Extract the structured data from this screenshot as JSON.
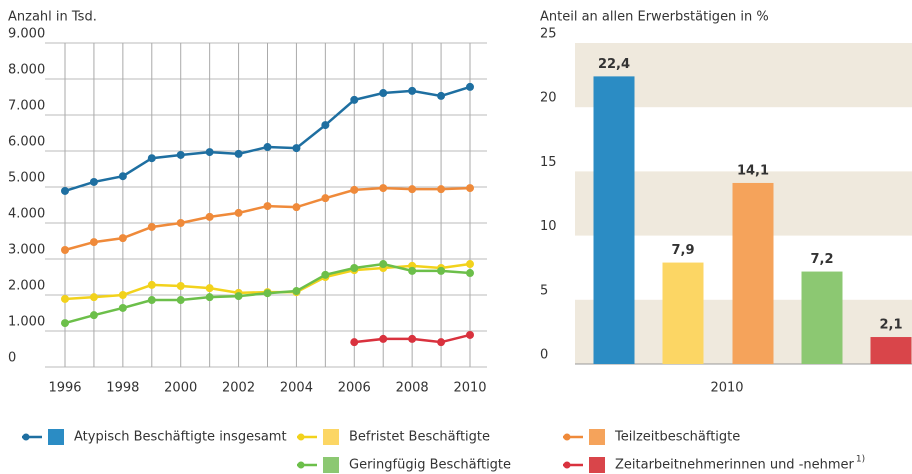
{
  "chart_data": [
    {
      "type": "line",
      "y_label": "Anzahl in Tsd.",
      "x": [
        1996,
        1997,
        1998,
        1999,
        2000,
        2001,
        2002,
        2003,
        2004,
        2005,
        2006,
        2007,
        2008,
        2009,
        2010
      ],
      "xlim": [
        1996,
        2010
      ],
      "xticks": [
        1996,
        1998,
        2000,
        2002,
        2004,
        2006,
        2008,
        2010
      ],
      "ylim": [
        0,
        9000
      ],
      "yticks": [
        0,
        {
          "value": 1000,
          "label": "1.000"
        },
        {
          "value": 2000,
          "label": "2.000"
        },
        {
          "value": 3000,
          "label": "3.000"
        },
        {
          "value": 4000,
          "label": "4.000"
        },
        {
          "value": 5000,
          "label": "5.000"
        },
        {
          "value": 6000,
          "label": "6.000"
        },
        {
          "value": 7000,
          "label": "7.000"
        },
        {
          "value": 8000,
          "label": "8.000"
        },
        {
          "value": 9000,
          "label": "9.000"
        }
      ],
      "grid": true,
      "series": [
        {
          "name": "Atypisch Beschäftigte insgesamt",
          "color": "#1e6fa1",
          "legend_color": "#2b8cc4",
          "values": [
            4890,
            5140,
            5300,
            5800,
            5890,
            5970,
            5920,
            6110,
            6080,
            6720,
            7420,
            7610,
            7670,
            7530,
            7780
          ]
        },
        {
          "name": "Befristet Beschäftigte",
          "color": "#f2d21c",
          "legend_color": "#fcd664",
          "values": [
            1890,
            1940,
            2000,
            2280,
            2250,
            2190,
            2060,
            2080,
            2080,
            2500,
            2690,
            2750,
            2810,
            2750,
            2860
          ]
        },
        {
          "name": "Teilzeitbeschäftigte",
          "color": "#ef8a3a",
          "legend_color": "#f5a35b",
          "values": [
            3250,
            3470,
            3580,
            3890,
            4000,
            4170,
            4280,
            4470,
            4440,
            4690,
            4920,
            4970,
            4940,
            4940,
            4970
          ]
        },
        {
          "name": "Geringfügig Beschäftigte",
          "color": "#6cbf4a",
          "legend_color": "#8cc872",
          "values": [
            1220,
            1440,
            1640,
            1860,
            1860,
            1940,
            1970,
            2050,
            2110,
            2560,
            2750,
            2860,
            2670,
            2670,
            2610
          ]
        },
        {
          "name": "Zeitarbeitnehmerinnen und -nehmer",
          "footnote": "1)",
          "color": "#d9323e",
          "legend_color": "#d9454a",
          "values": [
            null,
            null,
            null,
            null,
            null,
            null,
            null,
            null,
            null,
            null,
            690,
            780,
            780,
            690,
            890
          ]
        }
      ]
    },
    {
      "type": "bar",
      "y_label": "Anteil an allen Erwerbstätigen in %",
      "categories": [
        "2010"
      ],
      "ylim": [
        0,
        25
      ],
      "yticks": [
        0,
        5,
        10,
        15,
        20,
        25
      ],
      "series": [
        {
          "color": "#2b8cc4",
          "values": [
            22.4
          ],
          "value_labels": [
            "22,4"
          ]
        },
        {
          "color": "#fcd664",
          "values": [
            7.9
          ],
          "value_labels": [
            "7,9"
          ]
        },
        {
          "color": "#f5a35b",
          "values": [
            14.1
          ],
          "value_labels": [
            "14,1"
          ]
        },
        {
          "color": "#8cc872",
          "values": [
            7.2
          ],
          "value_labels": [
            "7,2"
          ]
        },
        {
          "color": "#d9454a",
          "values": [
            2.1
          ],
          "value_labels": [
            "2,1"
          ]
        }
      ]
    }
  ]
}
